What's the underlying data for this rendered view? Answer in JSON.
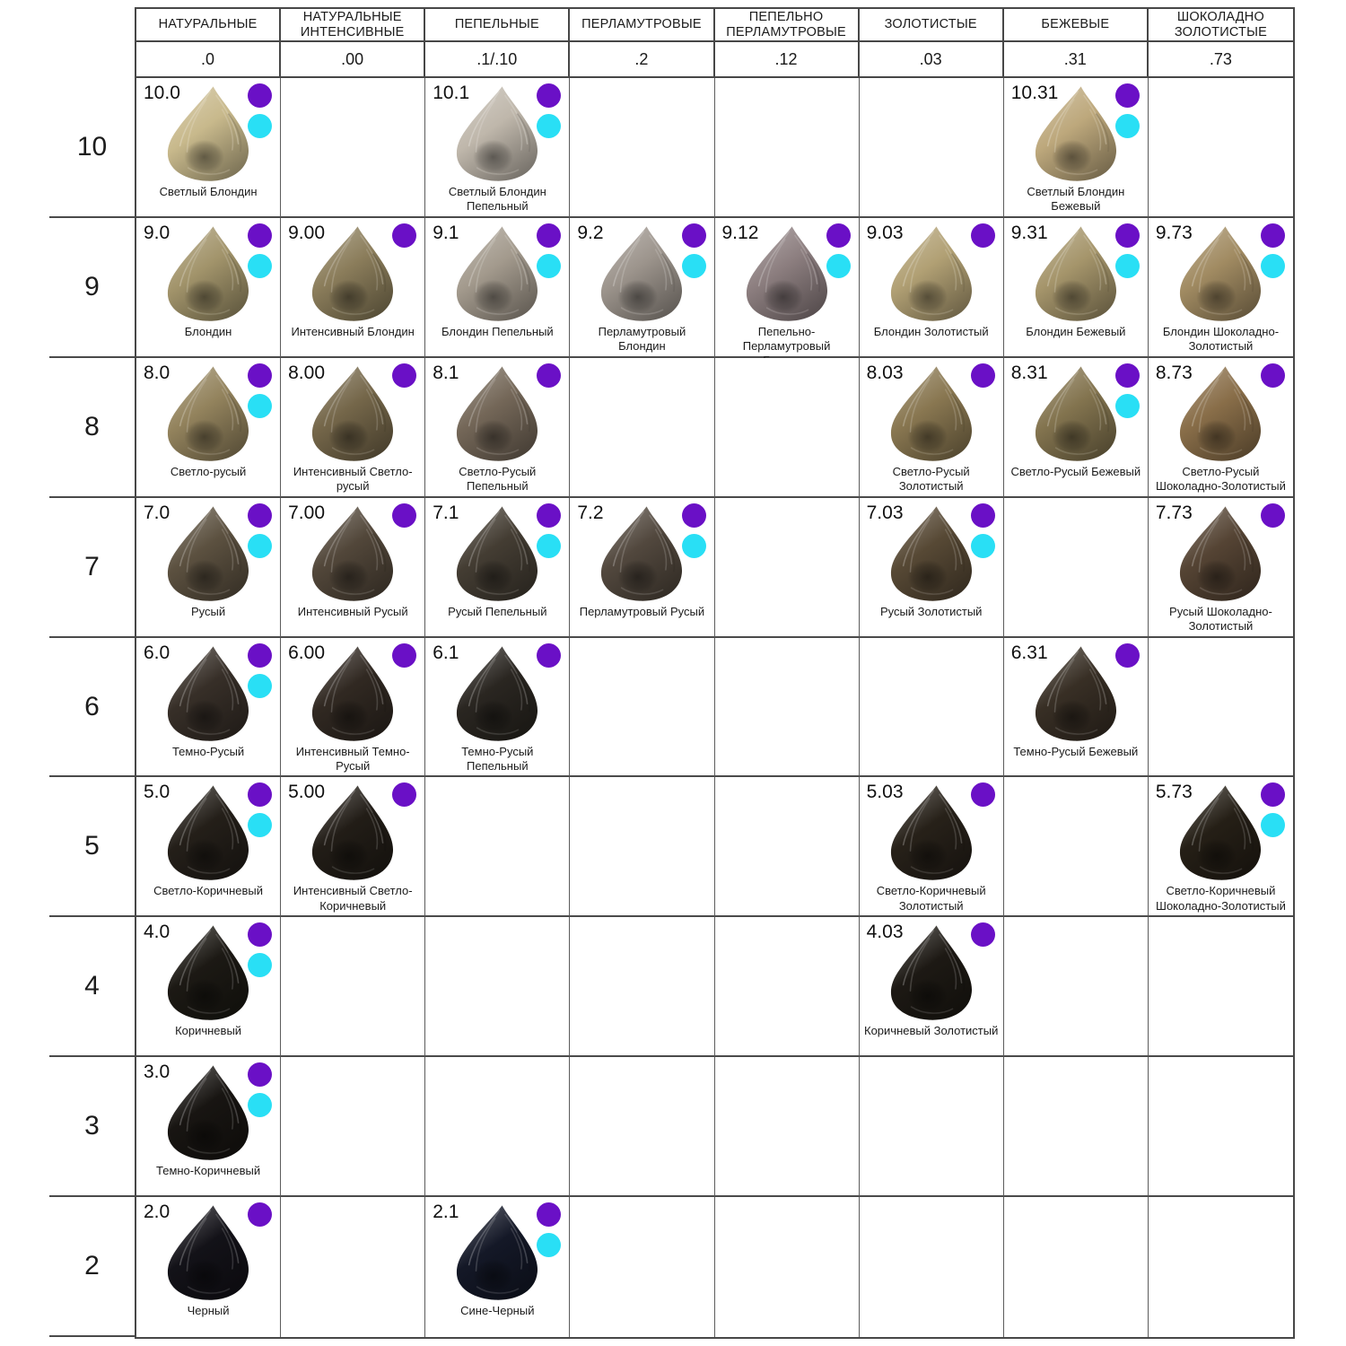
{
  "legend_colors": {
    "purple": "#6a10c6",
    "cyan": "#29dff5"
  },
  "columns": [
    {
      "label": "НАТУРАЛЬНЫЕ",
      "code": ".0"
    },
    {
      "label": "НАТУРАЛЬНЫЕ ИНТЕНСИВНЫЕ",
      "code": ".00"
    },
    {
      "label": "ПЕПЕЛЬНЫЕ",
      "code": ".1/.10"
    },
    {
      "label": "ПЕРЛАМУТРОВЫЕ",
      "code": ".2"
    },
    {
      "label": "ПЕПЕЛЬНО ПЕРЛАМУТРОВЫЕ",
      "code": ".12"
    },
    {
      "label": "ЗОЛОТИСТЫЕ",
      "code": ".03"
    },
    {
      "label": "БЕЖЕВЫЕ",
      "code": ".31"
    },
    {
      "label": "ШОКОЛАДНО ЗОЛОТИСТЫЕ",
      "code": ".73"
    }
  ],
  "rows": [
    {
      "level": "10",
      "cells": [
        {
          "code": "10.0",
          "name": "Светлый Блондин",
          "color": "#c8b98c",
          "dots": [
            "purple",
            "cyan"
          ]
        },
        null,
        {
          "code": "10.1",
          "name": "Светлый Блондин Пепельный",
          "color": "#bfb7ab",
          "dots": [
            "purple",
            "cyan"
          ]
        },
        null,
        null,
        null,
        {
          "code": "10.31",
          "name": "Светлый Блондин Бежевый",
          "color": "#bda87c",
          "dots": [
            "purple",
            "cyan"
          ]
        },
        null
      ]
    },
    {
      "level": "9",
      "cells": [
        {
          "code": "9.0",
          "name": "Блондин",
          "color": "#a2946b",
          "dots": [
            "purple",
            "cyan"
          ]
        },
        {
          "code": "9.00",
          "name": "Интенсивный Блондин",
          "color": "#8b7d5b",
          "dots": [
            "purple"
          ]
        },
        {
          "code": "9.1",
          "name": "Блондин Пепельный",
          "color": "#a39a8d",
          "dots": [
            "purple",
            "cyan"
          ]
        },
        {
          "code": "9.2",
          "name": "Перламутровый Блондин",
          "color": "#9c948c",
          "dots": [
            "purple",
            "cyan"
          ]
        },
        {
          "code": "9.12",
          "name": "Пепельно-Перламутровый Блондин",
          "color": "#8c7e7f",
          "dots": [
            "purple",
            "cyan"
          ]
        },
        {
          "code": "9.03",
          "name": "Блондин Золотистый",
          "color": "#b1a074",
          "dots": [
            "purple"
          ]
        },
        {
          "code": "9.31",
          "name": "Блондин Бежевый",
          "color": "#a5956b",
          "dots": [
            "purple",
            "cyan"
          ]
        },
        {
          "code": "9.73",
          "name": "Блондин Шоколадно-Золотистый",
          "color": "#a18b62",
          "dots": [
            "purple",
            "cyan"
          ]
        }
      ]
    },
    {
      "level": "8",
      "cells": [
        {
          "code": "8.0",
          "name": "Светло-русый",
          "color": "#93835d",
          "dots": [
            "purple",
            "cyan"
          ]
        },
        {
          "code": "8.00",
          "name": "Интенсивный Светло-русый",
          "color": "#75674a",
          "dots": [
            "purple"
          ]
        },
        {
          "code": "8.1",
          "name": "Светло-Русый Пепельный",
          "color": "#746758",
          "dots": [
            "purple"
          ]
        },
        null,
        null,
        {
          "code": "8.03",
          "name": "Светло-Русый Золотистый",
          "color": "#897751",
          "dots": [
            "purple"
          ]
        },
        {
          "code": "8.31",
          "name": "Светло-Русый Бежевый",
          "color": "#83744f",
          "dots": [
            "purple",
            "cyan"
          ]
        },
        {
          "code": "8.73",
          "name": "Светло-Русый Шоколадно-Золотистый",
          "color": "#896e49",
          "dots": [
            "purple"
          ]
        }
      ]
    },
    {
      "level": "7",
      "cells": [
        {
          "code": "7.0",
          "name": "Русый",
          "color": "#5c5140",
          "dots": [
            "purple",
            "cyan"
          ]
        },
        {
          "code": "7.00",
          "name": "Интенсивный Русый",
          "color": "#52473a",
          "dots": [
            "purple"
          ]
        },
        {
          "code": "7.1",
          "name": "Русый Пепельный",
          "color": "#443d33",
          "dots": [
            "purple",
            "cyan"
          ]
        },
        {
          "code": "7.2",
          "name": "Перламутровый Русый",
          "color": "#52483e",
          "dots": [
            "purple",
            "cyan"
          ]
        },
        null,
        {
          "code": "7.03",
          "name": "Русый Золотистый",
          "color": "#574935",
          "dots": [
            "purple",
            "cyan"
          ]
        },
        null,
        {
          "code": "7.73",
          "name": "Русый Шоколадно-Золотистый",
          "color": "#554434",
          "dots": [
            "purple"
          ]
        }
      ]
    },
    {
      "level": "6",
      "cells": [
        {
          "code": "6.0",
          "name": "Темно-Русый",
          "color": "#372f28",
          "dots": [
            "purple",
            "cyan"
          ]
        },
        {
          "code": "6.00",
          "name": "Интенсивный Темно-Русый",
          "color": "#312922",
          "dots": [
            "purple"
          ]
        },
        {
          "code": "6.1",
          "name": "Темно-Русый Пепельный",
          "color": "#2a2621",
          "dots": [
            "purple"
          ]
        },
        null,
        null,
        null,
        {
          "code": "6.31",
          "name": "Темно-Русый Бежевый",
          "color": "#382f25",
          "dots": [
            "purple"
          ]
        },
        null
      ]
    },
    {
      "level": "5",
      "cells": [
        {
          "code": "5.0",
          "name": "Светло-Коричневый",
          "color": "#241f19",
          "dots": [
            "purple",
            "cyan"
          ]
        },
        {
          "code": "5.00",
          "name": "Интенсивный Светло-Коричневый",
          "color": "#221d17",
          "dots": [
            "purple"
          ]
        },
        null,
        null,
        null,
        {
          "code": "5.03",
          "name": "Светло-Коричневый Золотистый",
          "color": "#272119",
          "dots": [
            "purple"
          ]
        },
        null,
        {
          "code": "5.73",
          "name": "Светло-Коричневый Шоколадно-Золотистый",
          "color": "#251f16",
          "dots": [
            "purple",
            "cyan"
          ]
        }
      ]
    },
    {
      "level": "4",
      "cells": [
        {
          "code": "4.0",
          "name": "Коричневый",
          "color": "#1c1914",
          "dots": [
            "purple",
            "cyan"
          ]
        },
        null,
        null,
        null,
        null,
        {
          "code": "4.03",
          "name": "Коричневый Золотистый",
          "color": "#1d1914",
          "dots": [
            "purple"
          ]
        },
        null,
        null
      ]
    },
    {
      "level": "3",
      "cells": [
        {
          "code": "3.0",
          "name": "Темно-Коричневый",
          "color": "#181512",
          "dots": [
            "purple",
            "cyan"
          ]
        },
        null,
        null,
        null,
        null,
        null,
        null,
        null
      ]
    },
    {
      "level": "2",
      "cells": [
        {
          "code": "2.0",
          "name": "Черный",
          "color": "#131218",
          "dots": [
            "purple"
          ]
        },
        null,
        {
          "code": "2.1",
          "name": "Сине-Черный",
          "color": "#141827",
          "dots": [
            "purple",
            "cyan"
          ]
        },
        null,
        null,
        null,
        null,
        null
      ]
    }
  ]
}
